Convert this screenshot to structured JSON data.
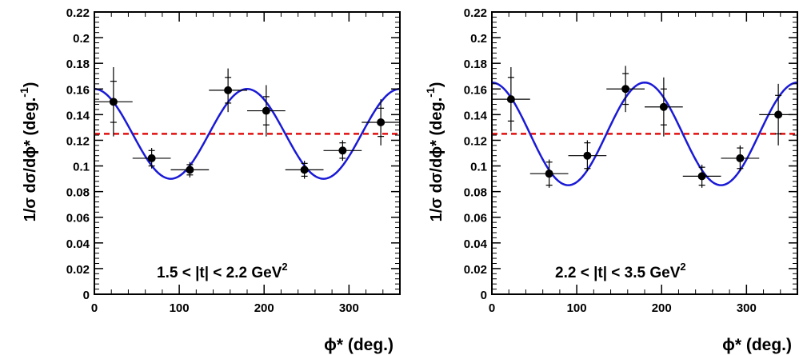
{
  "chart_data": [
    {
      "type": "scatter",
      "panel": "left",
      "annotation": "1.5 < |t| < 2.2 GeV",
      "annotation_sup": "2",
      "xlabel": "ϕ* (deg.)",
      "ylabel": "1/σ dσ/dϕ* (deg.",
      "ylabel_sup": "-1",
      "ylabel_close": ")",
      "xlim": [
        0,
        360
      ],
      "ylim": [
        0,
        0.22
      ],
      "x_ticks": [
        0,
        100,
        200,
        300
      ],
      "x_tick_labels": [
        "0",
        "100",
        "200",
        "300"
      ],
      "y_ticks": [
        0,
        0.02,
        0.04,
        0.06,
        0.08,
        0.1,
        0.12,
        0.14,
        0.16,
        0.18,
        0.2,
        0.22
      ],
      "y_tick_labels": [
        "0",
        "0.02",
        "0.04",
        "0.06",
        "0.08",
        "0.1",
        "0.12",
        "0.14",
        "0.16",
        "0.18",
        "0.2",
        "0.22"
      ],
      "points": [
        {
          "x": 22.5,
          "y": 0.15,
          "xerr": 22.5,
          "yerr_stat": 0.016,
          "yerr_tot": 0.027
        },
        {
          "x": 67.5,
          "y": 0.106,
          "xerr": 22.5,
          "yerr_stat": 0.006,
          "yerr_tot": 0.008
        },
        {
          "x": 112.5,
          "y": 0.097,
          "xerr": 22.5,
          "yerr_stat": 0.004,
          "yerr_tot": 0.006
        },
        {
          "x": 157.5,
          "y": 0.159,
          "xerr": 22.5,
          "yerr_stat": 0.01,
          "yerr_tot": 0.017
        },
        {
          "x": 202.5,
          "y": 0.143,
          "xerr": 22.5,
          "yerr_stat": 0.011,
          "yerr_tot": 0.02
        },
        {
          "x": 247.5,
          "y": 0.097,
          "xerr": 22.5,
          "yerr_stat": 0.005,
          "yerr_tot": 0.007
        },
        {
          "x": 292.5,
          "y": 0.112,
          "xerr": 22.5,
          "yerr_stat": 0.006,
          "yerr_tot": 0.008
        },
        {
          "x": 337.5,
          "y": 0.134,
          "xerr": 22.5,
          "yerr_stat": 0.011,
          "yerr_tot": 0.018
        }
      ],
      "fit_curve": {
        "form": "A + B*cos(2*phi)",
        "A": 0.125,
        "B": 0.035
      },
      "reference_line": {
        "y": 0.125,
        "style": "dashed"
      },
      "colors": {
        "points": "#000000",
        "fit": "#1a1ad6",
        "reference": "#e01010"
      }
    },
    {
      "type": "scatter",
      "panel": "right",
      "annotation": "2.2 < |t| < 3.5 GeV",
      "annotation_sup": "2",
      "xlabel": "ϕ* (deg.)",
      "ylabel": "1/σ dσ/dϕ* (deg.",
      "ylabel_sup": "-1",
      "ylabel_close": ")",
      "xlim": [
        0,
        360
      ],
      "ylim": [
        0,
        0.22
      ],
      "x_ticks": [
        0,
        100,
        200,
        300
      ],
      "x_tick_labels": [
        "0",
        "100",
        "200",
        "300"
      ],
      "y_ticks": [
        0,
        0.02,
        0.04,
        0.06,
        0.08,
        0.1,
        0.12,
        0.14,
        0.16,
        0.18,
        0.2,
        0.22
      ],
      "y_tick_labels": [
        "0",
        "0.02",
        "0.04",
        "0.06",
        "0.08",
        "0.1",
        "0.12",
        "0.14",
        "0.16",
        "0.18",
        "0.2",
        "0.22"
      ],
      "points": [
        {
          "x": 22.5,
          "y": 0.152,
          "xerr": 22.5,
          "yerr_stat": 0.017,
          "yerr_tot": 0.025
        },
        {
          "x": 67.5,
          "y": 0.094,
          "xerr": 22.5,
          "yerr_stat": 0.009,
          "yerr_tot": 0.011
        },
        {
          "x": 112.5,
          "y": 0.108,
          "xerr": 22.5,
          "yerr_stat": 0.01,
          "yerr_tot": 0.012
        },
        {
          "x": 157.5,
          "y": 0.16,
          "xerr": 22.5,
          "yerr_stat": 0.012,
          "yerr_tot": 0.018
        },
        {
          "x": 202.5,
          "y": 0.146,
          "xerr": 22.5,
          "yerr_stat": 0.014,
          "yerr_tot": 0.023
        },
        {
          "x": 247.5,
          "y": 0.092,
          "xerr": 22.5,
          "yerr_stat": 0.007,
          "yerr_tot": 0.009
        },
        {
          "x": 292.5,
          "y": 0.106,
          "xerr": 22.5,
          "yerr_stat": 0.008,
          "yerr_tot": 0.01
        },
        {
          "x": 337.5,
          "y": 0.14,
          "xerr": 22.5,
          "yerr_stat": 0.015,
          "yerr_tot": 0.024
        }
      ],
      "fit_curve": {
        "form": "A + B*cos(2*phi)",
        "A": 0.125,
        "B": 0.04
      },
      "reference_line": {
        "y": 0.125,
        "style": "dashed"
      },
      "colors": {
        "points": "#000000",
        "fit": "#1a1ad6",
        "reference": "#e01010"
      }
    }
  ]
}
